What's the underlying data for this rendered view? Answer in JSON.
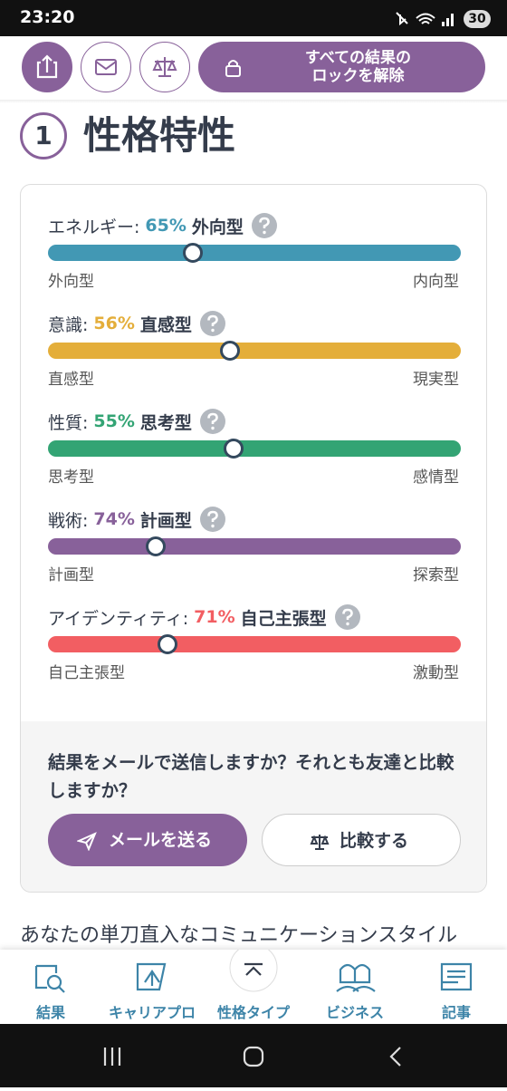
{
  "status_bar": {
    "time": "23:20",
    "battery": "30"
  },
  "toolbar": {
    "unlock_lines": [
      "すべての結果の",
      "ロックを解除"
    ]
  },
  "section": {
    "number": "1",
    "title": "性格特性"
  },
  "traits": [
    {
      "name": "エネルギー:",
      "value": 65,
      "value_label": "65%",
      "type": "外向型",
      "left": "外向型",
      "right": "内向型",
      "color": "#4298b4"
    },
    {
      "name": "意識:",
      "value": 56,
      "value_label": "56%",
      "type": "直感型",
      "left": "直感型",
      "right": "現実型",
      "color": "#e4ae3a"
    },
    {
      "name": "性質:",
      "value": 55,
      "value_label": "55%",
      "type": "思考型",
      "left": "思考型",
      "right": "感情型",
      "color": "#33a474"
    },
    {
      "name": "戦術:",
      "value": 74,
      "value_label": "74%",
      "type": "計画型",
      "left": "計画型",
      "right": "探索型",
      "color": "#88619a"
    },
    {
      "name": "アイデンティティ:",
      "value": 71,
      "value_label": "71%",
      "type": "自己主張型",
      "left": "自己主張型",
      "right": "激動型",
      "color": "#f25e62"
    }
  ],
  "share": {
    "question": "結果をメールで送信しますか？それとも友達と比較しますか？",
    "email_button": "メールを送る",
    "compare_button": "比較する"
  },
  "next_heading": "あなたの単刀直入なコミュニケーションスタイル",
  "nav": [
    "結果",
    "キャリアプロ",
    "性格タイプ",
    "ビジネス",
    "記事"
  ]
}
